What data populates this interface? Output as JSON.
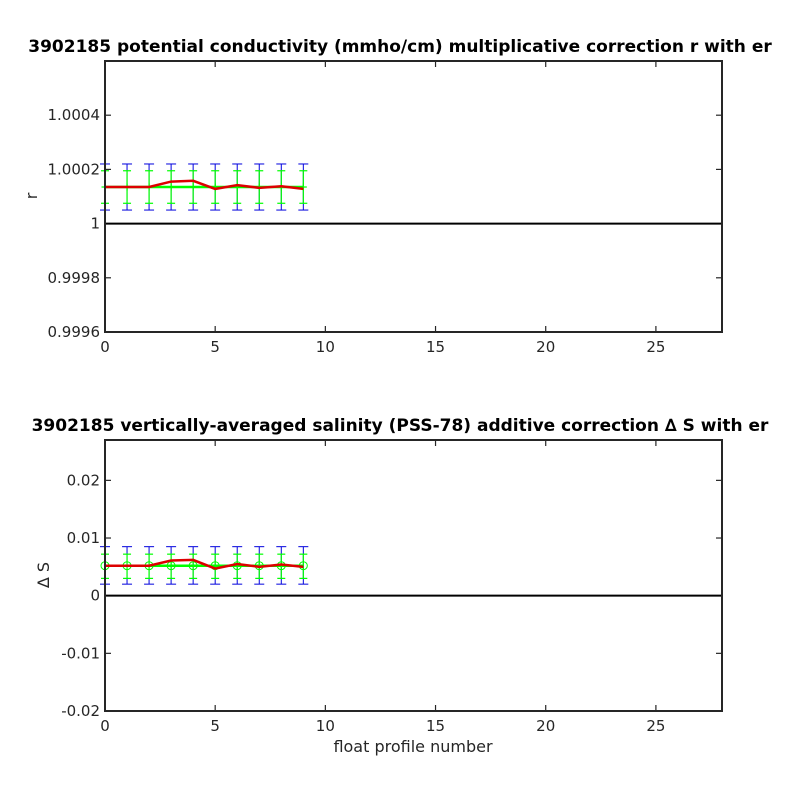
{
  "chart_data": [
    {
      "type": "line",
      "title": "3902185 potential conductivity (mmho/cm) multiplicative correction r with er",
      "xlabel": "",
      "ylabel": "r",
      "xlim": [
        0,
        28
      ],
      "ylim": [
        0.9996,
        1.0006
      ],
      "xticks": [
        0,
        5,
        10,
        15,
        20,
        25
      ],
      "xtick_labels": [
        "0",
        "5",
        "10",
        "15",
        "20",
        "25"
      ],
      "yticks": [
        0.9996,
        0.9998,
        1,
        1.0002,
        1.0004
      ],
      "ytick_labels": [
        "0.9996",
        "0.9998",
        "1",
        "1.0002",
        "1.0004"
      ],
      "reference_line": 1,
      "grid": false,
      "x": [
        0,
        1,
        2,
        3,
        4,
        5,
        6,
        7,
        8,
        9
      ],
      "series": [
        {
          "values": [
            1.000135,
            1.000135,
            1.000135,
            1.000155,
            1.000158,
            1.000128,
            1.000142,
            1.000132,
            1.000138,
            1.000128
          ],
          "color": "#dd0000",
          "style": "line"
        },
        {
          "values": [
            1.000135,
            1.000135,
            1.000135,
            1.000135,
            1.000135,
            1.000135,
            1.000135,
            1.000135,
            1.000135,
            1.000135
          ],
          "color": "#00ff00",
          "style": "line-with-markers",
          "marker": "plus"
        }
      ],
      "error_bars": [
        {
          "color": "#0000dd",
          "lower": [
            1.00005,
            1.00005,
            1.00005,
            1.00005,
            1.00005,
            1.00005,
            1.00005,
            1.00005,
            1.00005,
            1.00005
          ],
          "upper": [
            1.00022,
            1.00022,
            1.00022,
            1.00022,
            1.00022,
            1.00022,
            1.00022,
            1.00022,
            1.00022,
            1.00022
          ]
        },
        {
          "color": "#00ff00",
          "lower": [
            1.000075,
            1.000075,
            1.000075,
            1.000075,
            1.000075,
            1.000075,
            1.000075,
            1.000075,
            1.000075,
            1.000075
          ],
          "upper": [
            1.000195,
            1.000195,
            1.000195,
            1.000195,
            1.000195,
            1.000195,
            1.000195,
            1.000195,
            1.000195,
            1.000195
          ]
        }
      ]
    },
    {
      "type": "line",
      "title": "3902185 vertically-averaged salinity (PSS-78) additive correction ∆ S with er",
      "xlabel": "float profile number",
      "ylabel": "∆ S",
      "xlim": [
        0,
        28
      ],
      "ylim": [
        -0.02,
        0.027
      ],
      "xticks": [
        0,
        5,
        10,
        15,
        20,
        25
      ],
      "xtick_labels": [
        "0",
        "5",
        "10",
        "15",
        "20",
        "25"
      ],
      "yticks": [
        -0.02,
        -0.01,
        0,
        0.01,
        0.02
      ],
      "ytick_labels": [
        "-0.02",
        "-0.01",
        "0",
        "0.01",
        "0.02"
      ],
      "reference_line": 0,
      "grid": false,
      "x": [
        0,
        1,
        2,
        3,
        4,
        5,
        6,
        7,
        8,
        9
      ],
      "series": [
        {
          "values": [
            0.0052,
            0.0052,
            0.0052,
            0.0061,
            0.0062,
            0.0047,
            0.0055,
            0.005,
            0.0054,
            0.005
          ],
          "color": "#dd0000",
          "style": "line"
        },
        {
          "values": [
            0.0052,
            0.0052,
            0.0052,
            0.0052,
            0.0052,
            0.0052,
            0.0052,
            0.0052,
            0.0052,
            0.0052
          ],
          "color": "#00ff00",
          "style": "line-with-markers",
          "marker": "circle"
        }
      ],
      "error_bars": [
        {
          "color": "#0000dd",
          "lower": [
            0.002,
            0.002,
            0.002,
            0.002,
            0.002,
            0.002,
            0.002,
            0.002,
            0.002,
            0.002
          ],
          "upper": [
            0.0085,
            0.0085,
            0.0085,
            0.0085,
            0.0085,
            0.0085,
            0.0085,
            0.0085,
            0.0085,
            0.0085
          ]
        },
        {
          "color": "#00ff00",
          "lower": [
            0.003,
            0.003,
            0.003,
            0.003,
            0.003,
            0.003,
            0.003,
            0.003,
            0.003,
            0.003
          ],
          "upper": [
            0.0072,
            0.0072,
            0.0072,
            0.0072,
            0.0072,
            0.0072,
            0.0072,
            0.0072,
            0.0072,
            0.0072
          ]
        }
      ]
    }
  ]
}
